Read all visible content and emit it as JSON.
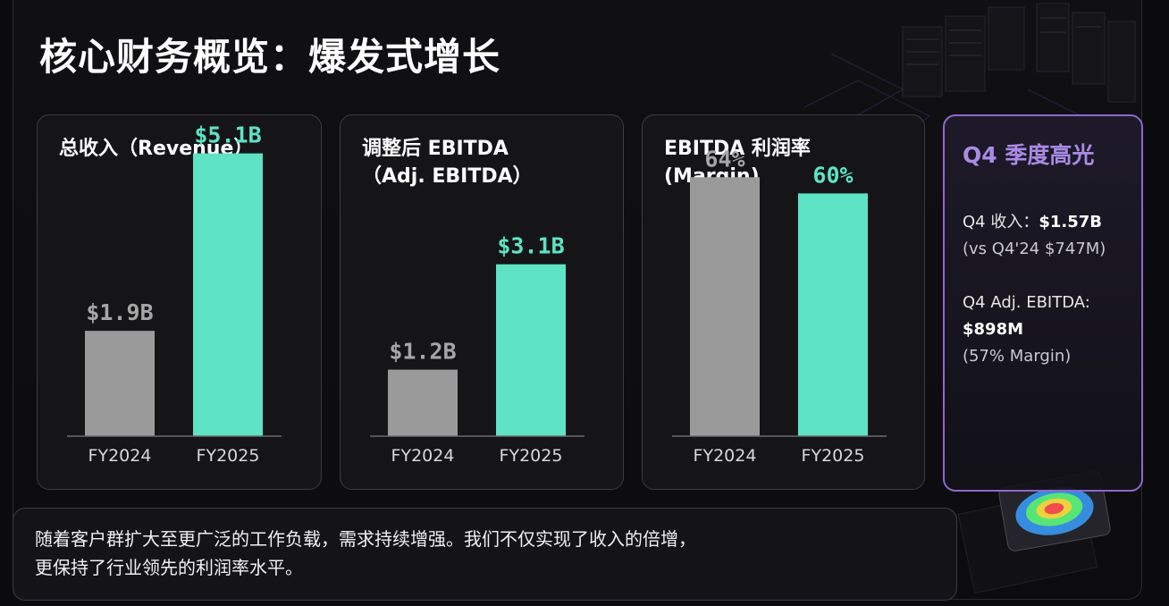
{
  "title": "核心财务概览：爆发式增长",
  "colors": {
    "prior": "#9a9a9a",
    "current": "#5ee3c4",
    "prior_label": "#a6a6a6",
    "current_label": "#5ee3c4",
    "highlight": "#a98be6"
  },
  "chart_data": [
    {
      "type": "bar",
      "title": [
        "总收入（Revenue）"
      ],
      "categories": [
        "FY2024",
        "FY2025"
      ],
      "values": [
        1.9,
        5.1
      ],
      "value_labels": [
        "$1.9B",
        "$5.1B"
      ],
      "ylim": [
        0,
        5.4
      ]
    },
    {
      "type": "bar",
      "title": [
        "调整后 EBITDA",
        "（Adj. EBITDA）"
      ],
      "categories": [
        "FY2024",
        "FY2025"
      ],
      "values": [
        1.2,
        3.1
      ],
      "value_labels": [
        "$1.2B",
        "$3.1B"
      ],
      "ylim": [
        0,
        5.4
      ]
    },
    {
      "type": "bar",
      "title": [
        "EBITDA 利润率",
        "(Margin)"
      ],
      "categories": [
        "FY2024",
        "FY2025"
      ],
      "values": [
        64,
        60
      ],
      "value_labels": [
        "64%",
        "60%"
      ],
      "ylim": [
        0,
        74
      ]
    }
  ],
  "highlight": {
    "title": "Q4 季度高光",
    "items": [
      {
        "label": "Q4 收入：",
        "value": "$1.57B",
        "note": "(vs Q4'24 $747M)"
      },
      {
        "label": "Q4 Adj. EBITDA:",
        "value": "$898M",
        "note": "(57% Margin)"
      }
    ]
  },
  "footer": {
    "lines": [
      "随着客户群扩大至更广泛的工作负载，需求持续增强。我们不仅实现了收入的倍增，",
      "更保持了行业领先的利润率水平。"
    ]
  }
}
